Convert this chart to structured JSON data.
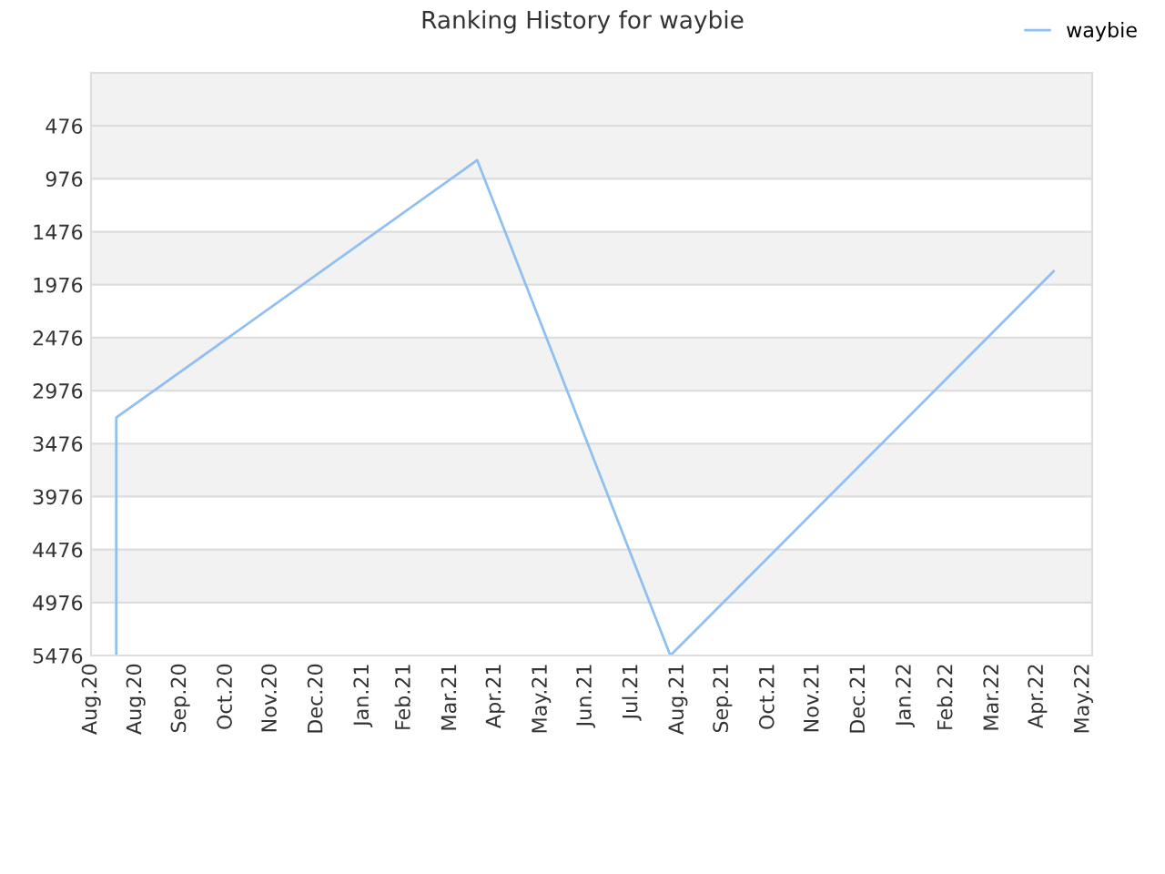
{
  "chart_data": {
    "type": "line",
    "title": "Ranking History for waybie",
    "x": [
      "2020-08-18",
      "2020-08-18",
      "2021-04-18",
      "2021-08-26",
      "2022-05-11"
    ],
    "series": [
      {
        "name": "waybie",
        "color": "#90c0f0",
        "values": [
          5476,
          3230,
          800,
          5476,
          1850
        ]
      }
    ],
    "xlim": [
      "2020-08-01",
      "2022-06-06"
    ],
    "xticks": [
      {
        "value": "2020-08-01",
        "label": "Aug.20"
      },
      {
        "value": "2020-08-31",
        "label": "Aug.20"
      },
      {
        "value": "2020-09-30",
        "label": "Sep.20"
      },
      {
        "value": "2020-10-31",
        "label": "Oct.20"
      },
      {
        "value": "2020-11-30",
        "label": "Nov.20"
      },
      {
        "value": "2020-12-31",
        "label": "Dec.20"
      },
      {
        "value": "2021-01-31",
        "label": "Jan.21"
      },
      {
        "value": "2021-02-28",
        "label": "Feb.21"
      },
      {
        "value": "2021-03-31",
        "label": "Mar.21"
      },
      {
        "value": "2021-04-30",
        "label": "Apr.21"
      },
      {
        "value": "2021-05-31",
        "label": "May.21"
      },
      {
        "value": "2021-06-30",
        "label": "Jun.21"
      },
      {
        "value": "2021-07-31",
        "label": "Jul.21"
      },
      {
        "value": "2021-08-31",
        "label": "Aug.21"
      },
      {
        "value": "2021-09-30",
        "label": "Sep.21"
      },
      {
        "value": "2021-10-31",
        "label": "Oct.21"
      },
      {
        "value": "2021-11-30",
        "label": "Nov.21"
      },
      {
        "value": "2021-12-31",
        "label": "Dec.21"
      },
      {
        "value": "2022-01-31",
        "label": "Jan.22"
      },
      {
        "value": "2022-02-28",
        "label": "Feb.22"
      },
      {
        "value": "2022-03-31",
        "label": "Mar.22"
      },
      {
        "value": "2022-04-30",
        "label": "Apr.22"
      },
      {
        "value": "2022-05-31",
        "label": "May.22"
      }
    ],
    "ylim": [
      5476,
      -24
    ],
    "yticks": [
      476,
      976,
      1476,
      1976,
      2476,
      2976,
      3476,
      3976,
      4476,
      4976,
      5476
    ],
    "grid": "y",
    "legend": "top right",
    "marker": "none",
    "line_style": "solid"
  }
}
